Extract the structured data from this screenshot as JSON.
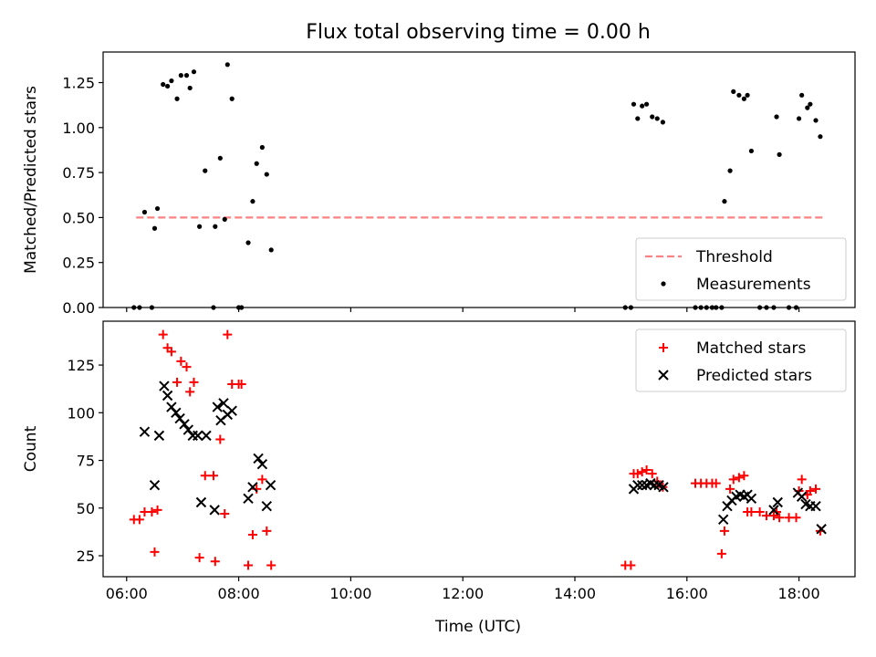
{
  "chart_data": {
    "type": "scatter",
    "title": "Flux total observing time = 0.00 h",
    "xlabel": "Time (UTC)",
    "x_unit": "hour of day (UTC)",
    "xlim": [
      5.58,
      19.0
    ],
    "x_ticks": [
      {
        "value": 6,
        "label": "06:00"
      },
      {
        "value": 8,
        "label": "08:00"
      },
      {
        "value": 10,
        "label": "10:00"
      },
      {
        "value": 12,
        "label": "12:00"
      },
      {
        "value": 14,
        "label": "14:00"
      },
      {
        "value": 16,
        "label": "16:00"
      },
      {
        "value": 18,
        "label": "18:00"
      }
    ],
    "panels": [
      {
        "ylabel": "Matched/Predicted stars",
        "ylim": [
          0,
          1.42
        ],
        "y_ticks": [
          {
            "value": 0,
            "label": "0.00"
          },
          {
            "value": 0.25,
            "label": "0.25"
          },
          {
            "value": 0.5,
            "label": "0.50"
          },
          {
            "value": 0.75,
            "label": "0.75"
          },
          {
            "value": 1.0,
            "label": "1.00"
          },
          {
            "value": 1.25,
            "label": "1.25"
          }
        ],
        "legend_position": "lower-right",
        "series": [
          {
            "name": "Threshold",
            "kind": "dashed-line",
            "color": "#ff8080",
            "x": [
              6.17,
              18.43
            ],
            "y": [
              0.5,
              0.5
            ]
          },
          {
            "name": "Measurements",
            "kind": "dot",
            "color": "#000000",
            "x": [
              6.13,
              6.23,
              6.32,
              6.45,
              6.5,
              6.55,
              6.65,
              6.73,
              6.8,
              6.9,
              6.97,
              7.07,
              7.13,
              7.2,
              7.3,
              7.4,
              7.55,
              7.58,
              7.67,
              7.75,
              7.8,
              7.88,
              8.0,
              8.05,
              8.17,
              8.25,
              8.32,
              8.42,
              8.5,
              8.58,
              14.9,
              15.0,
              15.05,
              15.12,
              15.2,
              15.28,
              15.38,
              15.47,
              15.57,
              16.15,
              16.25,
              16.35,
              16.45,
              16.52,
              16.62,
              16.67,
              16.77,
              16.83,
              16.93,
              17.02,
              17.08,
              17.15,
              17.3,
              17.42,
              17.55,
              17.6,
              17.65,
              17.82,
              17.95,
              18.0,
              18.05,
              18.15,
              18.2,
              18.3,
              18.38
            ],
            "y": [
              0.0,
              0.0,
              0.53,
              0.0,
              0.44,
              0.55,
              1.24,
              1.23,
              1.26,
              1.16,
              1.29,
              1.29,
              1.22,
              1.31,
              0.45,
              0.76,
              0.0,
              0.45,
              0.83,
              0.49,
              1.35,
              1.16,
              0.0,
              0.0,
              0.36,
              0.59,
              0.8,
              0.89,
              0.74,
              0.32,
              0.0,
              0.0,
              1.13,
              1.05,
              1.12,
              1.13,
              1.06,
              1.05,
              1.03,
              0.0,
              0.0,
              0.0,
              0.0,
              0.0,
              0.0,
              0.59,
              0.76,
              1.2,
              1.18,
              1.16,
              1.18,
              0.87,
              0.0,
              0.0,
              0.0,
              1.06,
              0.85,
              0.0,
              0.0,
              1.05,
              1.18,
              1.11,
              1.13,
              1.04,
              0.95
            ]
          }
        ]
      },
      {
        "ylabel": "Count",
        "ylim": [
          14,
          148
        ],
        "y_ticks": [
          {
            "value": 25,
            "label": "25"
          },
          {
            "value": 50,
            "label": "50"
          },
          {
            "value": 75,
            "label": "75"
          },
          {
            "value": 100,
            "label": "100"
          },
          {
            "value": 125,
            "label": "125"
          }
        ],
        "legend_position": "upper-right",
        "series": [
          {
            "name": "Matched stars",
            "kind": "plus",
            "color": "#ff0000",
            "x": [
              6.13,
              6.23,
              6.32,
              6.45,
              6.5,
              6.55,
              6.65,
              6.73,
              6.8,
              6.9,
              6.97,
              7.07,
              7.13,
              7.2,
              7.3,
              7.4,
              7.55,
              7.58,
              7.67,
              7.75,
              7.8,
              7.88,
              8.0,
              8.05,
              8.17,
              8.25,
              8.32,
              8.42,
              8.5,
              8.58,
              14.9,
              15.0,
              15.05,
              15.12,
              15.2,
              15.28,
              15.38,
              15.47,
              15.57,
              16.15,
              16.25,
              16.35,
              16.45,
              16.52,
              16.62,
              16.67,
              16.77,
              16.83,
              16.93,
              17.02,
              17.08,
              17.15,
              17.3,
              17.42,
              17.55,
              17.6,
              17.65,
              17.82,
              17.95,
              18.0,
              18.05,
              18.15,
              18.2,
              18.3,
              18.38
            ],
            "y": [
              44,
              44,
              48,
              48,
              27,
              49,
              141,
              134,
              132,
              116,
              127,
              124,
              111,
              116,
              24,
              67,
              67,
              22,
              86,
              47,
              141,
              115,
              115,
              115,
              20,
              36,
              60,
              65,
              38,
              20,
              20,
              20,
              68,
              68,
              69,
              70,
              68,
              64,
              61,
              63,
              63,
              63,
              63,
              63,
              26,
              38,
              60,
              65,
              66,
              67,
              48,
              48,
              48,
              46,
              46,
              48,
              45,
              45,
              45,
              59,
              65,
              57,
              59,
              60,
              38
            ]
          },
          {
            "name": "Predicted stars",
            "kind": "x",
            "color": "#000000",
            "x": [
              6.32,
              6.5,
              6.58,
              6.67,
              6.73,
              6.8,
              6.88,
              6.95,
              7.03,
              7.1,
              7.18,
              7.27,
              7.33,
              7.42,
              7.57,
              7.62,
              7.68,
              7.73,
              7.8,
              7.88,
              8.17,
              8.25,
              8.35,
              8.42,
              8.5,
              8.57,
              15.05,
              15.12,
              15.2,
              15.28,
              15.35,
              15.42,
              15.5,
              15.58,
              16.65,
              16.72,
              16.8,
              16.88,
              16.95,
              17.02,
              17.08,
              17.15,
              17.55,
              17.62,
              17.98,
              18.05,
              18.12,
              18.2,
              18.3,
              18.4
            ],
            "y": [
              90,
              62,
              88,
              114,
              109,
              103,
              100,
              97,
              94,
              91,
              88,
              88,
              53,
              88,
              49,
              103,
              96,
              105,
              99,
              101,
              55,
              61,
              76,
              73,
              51,
              62,
              60,
              62,
              62,
              62,
              63,
              62,
              62,
              61,
              44,
              51,
              54,
              56,
              57,
              56,
              57,
              55,
              49,
              53,
              58,
              56,
              52,
              51,
              51,
              39
            ]
          }
        ]
      }
    ]
  }
}
